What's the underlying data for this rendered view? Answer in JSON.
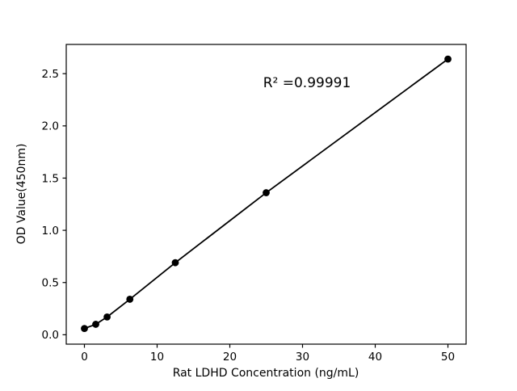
{
  "chart_data": {
    "type": "scatter",
    "title": "",
    "xlabel": "Rat LDHD Concentration (ng/mL)",
    "ylabel": "OD Value(450nm)",
    "annotation": "R² =0.99991",
    "annotation_xy": [
      30.5,
      2.42
    ],
    "x": [
      0,
      1.56,
      3.12,
      6.25,
      12.5,
      25,
      50
    ],
    "y": [
      0.06,
      0.1,
      0.17,
      0.34,
      0.69,
      1.36,
      2.64
    ],
    "line": true,
    "xlim": [
      -2.5,
      52.5
    ],
    "ylim": [
      -0.09,
      2.78
    ],
    "xticks": [
      0,
      10,
      20,
      30,
      40,
      50
    ],
    "xtick_labels": [
      "0",
      "10",
      "20",
      "30",
      "40",
      "50"
    ],
    "yticks": [
      0.0,
      0.5,
      1.0,
      1.5,
      2.0,
      2.5
    ],
    "ytick_labels": [
      "0.0",
      "0.5",
      "1.0",
      "1.5",
      "2.0",
      "2.5"
    ],
    "grid": false,
    "legend": null,
    "line_color": "#000000",
    "marker_color": "#000000",
    "background_color": "#ffffff"
  }
}
